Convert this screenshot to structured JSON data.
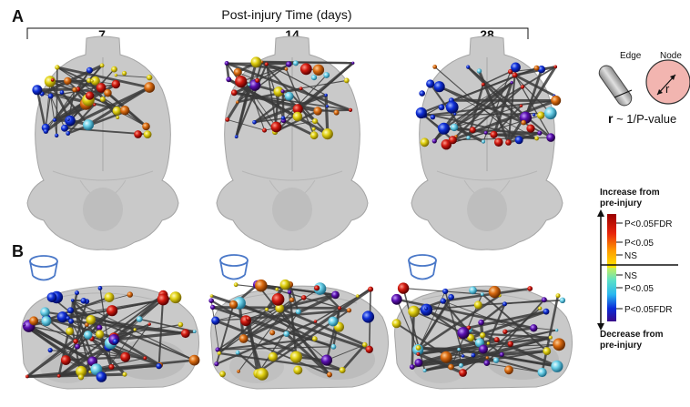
{
  "panel_labels": {
    "a": "A",
    "b": "B"
  },
  "axis_title": "Post-injury Time (days)",
  "time_points": [
    "7",
    "14",
    "28"
  ],
  "key": {
    "edge_label": "Edge",
    "node_label": "Node",
    "radius_symbol": "r",
    "relation_symbol": "r",
    "relation_text": " ~ 1/P-value"
  },
  "colorbar": {
    "increase_label_line1": "Increase from",
    "increase_label_line2": "pre-injury",
    "decrease_label_line1": "Decrease from",
    "decrease_label_line2": "pre-injury",
    "ticks": [
      "P<0.05FDR",
      "P<0.05",
      "NS",
      "NS",
      "P<0.05",
      "P<0.05FDR"
    ],
    "colors": {
      "increase_strong": "#b30000",
      "increase_mid": "#e8440a",
      "increase_weak": "#ffd400",
      "decrease_weak": "#c8f05a",
      "decrease_mid": "#29c6e0",
      "decrease_strong": "#0a1fd0",
      "decrease_deep": "#3a0a8a"
    }
  },
  "brain_colors": {
    "fill": "#c9c9c9",
    "edge_stroke": "#a5a5a5",
    "connection": "#3a3a3a"
  }
}
